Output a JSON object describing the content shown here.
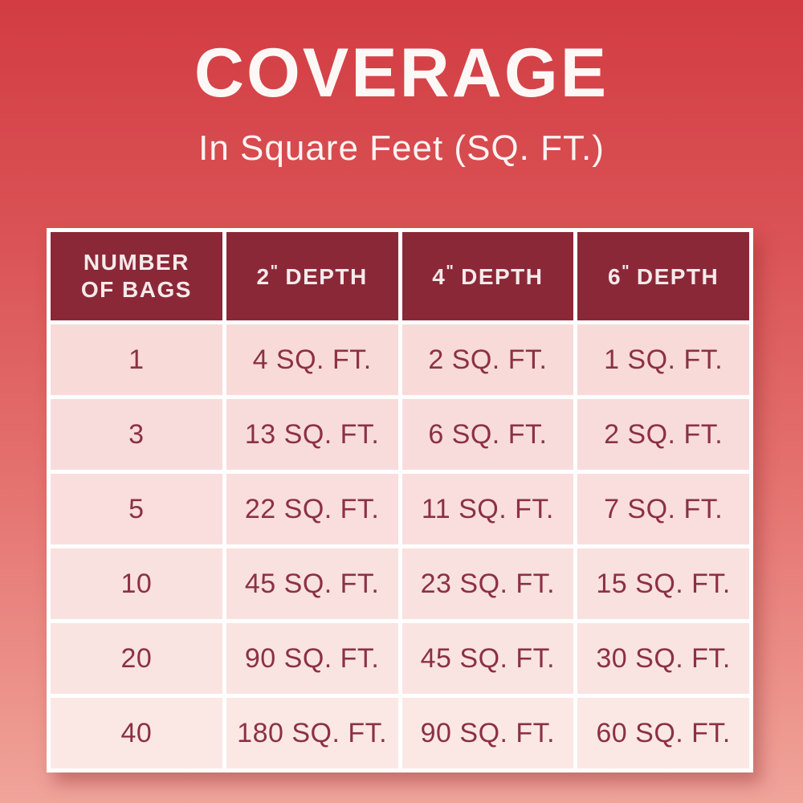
{
  "page": {
    "title": "COVERAGE",
    "subtitle": "In Square Feet (SQ. FT.)"
  },
  "colors": {
    "background_top": "#D23C42",
    "background_bottom": "#F0A49A",
    "header_bg": "#8B2838",
    "header_text": "#F5EAEA",
    "cell_bg": "#F8DCDB",
    "cell_text": "#8C3145",
    "grid": "#FFFFFF"
  },
  "table": {
    "columns": [
      {
        "label": "NUMBER OF BAGS",
        "lines": [
          "NUMBER",
          "OF BAGS"
        ]
      },
      {
        "label": "2\" DEPTH",
        "value": "2",
        "unit": "\"",
        "word": "DEPTH"
      },
      {
        "label": "4\" DEPTH",
        "value": "4",
        "unit": "\"",
        "word": "DEPTH"
      },
      {
        "label": "6\" DEPTH",
        "value": "6",
        "unit": "\"",
        "word": "DEPTH"
      }
    ],
    "rows": [
      {
        "bags": "1",
        "depth2": "4 SQ. FT.",
        "depth4": "2 SQ. FT.",
        "depth6": "1 SQ. FT."
      },
      {
        "bags": "3",
        "depth2": "13 SQ. FT.",
        "depth4": "6 SQ. FT.",
        "depth6": "2 SQ. FT."
      },
      {
        "bags": "5",
        "depth2": "22 SQ. FT.",
        "depth4": "11 SQ. FT.",
        "depth6": "7 SQ. FT."
      },
      {
        "bags": "10",
        "depth2": "45 SQ. FT.",
        "depth4": "23 SQ. FT.",
        "depth6": "15 SQ. FT."
      },
      {
        "bags": "20",
        "depth2": "90 SQ. FT.",
        "depth4": "45 SQ. FT.",
        "depth6": "30 SQ. FT."
      },
      {
        "bags": "40",
        "depth2": "180 SQ. FT.",
        "depth4": "90 SQ. FT.",
        "depth6": "60 SQ. FT."
      }
    ]
  },
  "chart_data": {
    "type": "table",
    "title": "COVERAGE",
    "subtitle": "In Square Feet (SQ. FT.)",
    "columns": [
      "NUMBER OF BAGS",
      "2\" DEPTH",
      "4\" DEPTH",
      "6\" DEPTH"
    ],
    "rows": [
      [
        "1",
        "4 SQ. FT.",
        "2 SQ. FT.",
        "1 SQ. FT."
      ],
      [
        "3",
        "13 SQ. FT.",
        "6 SQ. FT.",
        "2 SQ. FT."
      ],
      [
        "5",
        "22 SQ. FT.",
        "11 SQ. FT.",
        "7 SQ. FT."
      ],
      [
        "10",
        "45 SQ. FT.",
        "23 SQ. FT.",
        "15 SQ. FT."
      ],
      [
        "20",
        "90 SQ. FT.",
        "45 SQ. FT.",
        "30 SQ. FT."
      ],
      [
        "40",
        "180 SQ. FT.",
        "90 SQ. FT.",
        "60 SQ. FT."
      ]
    ],
    "numeric": {
      "bags": [
        1,
        3,
        5,
        10,
        20,
        40
      ],
      "coverage_sq_ft": {
        "depth_2_in": [
          4,
          13,
          22,
          45,
          90,
          180
        ],
        "depth_4_in": [
          2,
          6,
          11,
          23,
          45,
          90
        ],
        "depth_6_in": [
          1,
          2,
          7,
          15,
          30,
          60
        ]
      }
    }
  }
}
